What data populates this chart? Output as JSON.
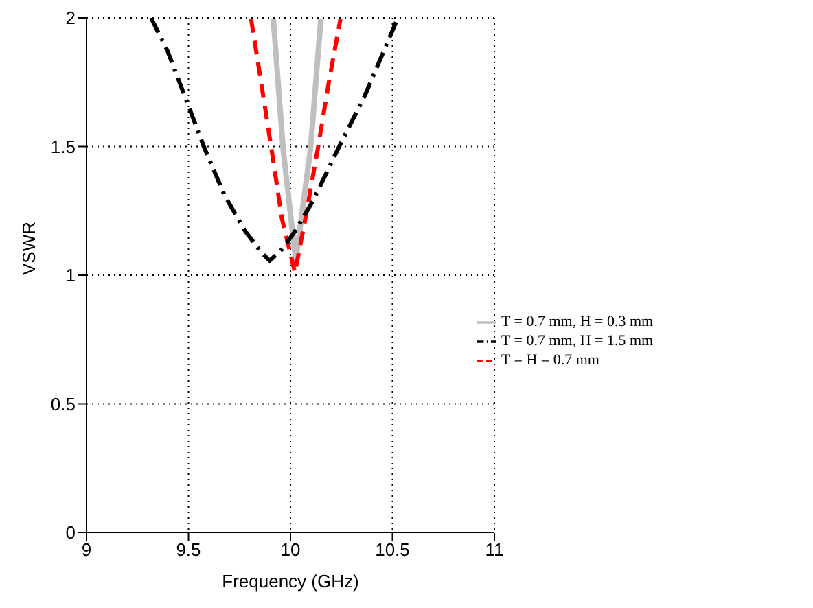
{
  "chart_data": {
    "type": "line",
    "xlabel": "Frequency (GHz)",
    "ylabel": "VSWR",
    "xlim": [
      9,
      11
    ],
    "xticks": [
      9,
      9.5,
      10,
      10.5,
      11
    ],
    "ylim": [
      0,
      2
    ],
    "yticks": [
      0,
      0.5,
      1,
      1.5,
      2
    ],
    "grid": true,
    "legend": "right",
    "series": [
      {
        "name": "T = 0.7 mm, H = 0.3 mm",
        "color": "#bfbfbf",
        "line_style": "solid",
        "x": [
          9.916,
          9.964,
          10.026,
          10.098,
          10.149
        ],
        "values": [
          1.995,
          1.49,
          1.056,
          1.49,
          1.995
        ]
      },
      {
        "name": "T = H = 0.7 mm",
        "color": "#ff0000",
        "line_style": "dashed",
        "x": [
          9.807,
          9.856,
          9.907,
          9.958,
          10.022,
          10.073,
          10.136,
          10.188,
          10.245
        ],
        "values": [
          1.995,
          1.75,
          1.49,
          1.22,
          1.01,
          1.22,
          1.5,
          1.75,
          1.995
        ]
      },
      {
        "name": "T = 0.7 mm, H = 1.5 mm",
        "color": "#000000",
        "line_style": "dashdot",
        "x": [
          9.316,
          9.397,
          9.499,
          9.575,
          9.677,
          9.779,
          9.856,
          9.898,
          9.958,
          10.022,
          10.111,
          10.239,
          10.366,
          10.519
        ],
        "values": [
          2,
          1.872,
          1.66,
          1.5,
          1.31,
          1.17,
          1.09,
          1.056,
          1.1,
          1.17,
          1.29,
          1.5,
          1.7,
          1.986
        ]
      }
    ]
  }
}
